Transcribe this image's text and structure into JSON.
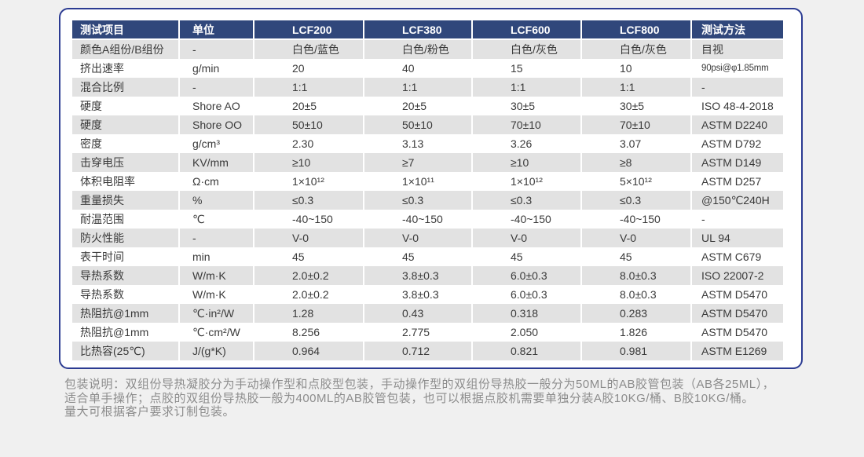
{
  "page": {
    "background_color": "#f0f0f0"
  },
  "card": {
    "border_color": "#2b3b92",
    "background_color": "#ffffff"
  },
  "table": {
    "header_bg_color": "#30477b",
    "header_text_color": "#ffffff",
    "stripe_color": "#e2e2e2",
    "body_text_color": "#3a3a3a",
    "headers": [
      "测试项目",
      "单位",
      "LCF200",
      "LCF380",
      "LCF600",
      "LCF800",
      "测试方法"
    ],
    "rows": [
      [
        "颜色A组份/B组份",
        "-",
        "白色/蓝色",
        "白色/粉色",
        "白色/灰色",
        "白色/灰色",
        "目视"
      ],
      [
        "挤出速率",
        "g/min",
        "20",
        "40",
        "15",
        "10",
        "90psi@φ1.85mm"
      ],
      [
        "混合比例",
        "-",
        "1:1",
        "1:1",
        "1:1",
        "1:1",
        "-"
      ],
      [
        "硬度",
        "Shore AO",
        "20±5",
        "20±5",
        "30±5",
        "30±5",
        "ISO 48-4-2018"
      ],
      [
        "硬度",
        "Shore OO",
        "50±10",
        "50±10",
        "70±10",
        "70±10",
        "ASTM D2240"
      ],
      [
        "密度",
        "g/cm³",
        "2.30",
        "3.13",
        "3.26",
        "3.07",
        "ASTM D792"
      ],
      [
        "击穿电压",
        "KV/mm",
        "≥10",
        "≥7",
        "≥10",
        "≥8",
        "ASTM D149"
      ],
      [
        "体积电阻率",
        "Ω·cm",
        "1×10¹²",
        "1×10¹¹",
        "1×10¹²",
        "5×10¹²",
        "ASTM D257"
      ],
      [
        "重量损失",
        "%",
        "≤0.3",
        "≤0.3",
        "≤0.3",
        "≤0.3",
        "@150℃240H"
      ],
      [
        "耐温范围",
        "℃",
        "-40~150",
        "-40~150",
        "-40~150",
        "-40~150",
        "-"
      ],
      [
        "防火性能",
        "-",
        "V-0",
        "V-0",
        "V-0",
        "V-0",
        "UL 94"
      ],
      [
        "表干时间",
        "min",
        "45",
        "45",
        "45",
        "45",
        "ASTM C679"
      ],
      [
        "导热系数",
        "W/m·K",
        "2.0±0.2",
        "3.8±0.3",
        "6.0±0.3",
        "8.0±0.3",
        "ISO 22007-2"
      ],
      [
        "导热系数",
        "W/m·K",
        "2.0±0.2",
        "3.8±0.3",
        "6.0±0.3",
        "8.0±0.3",
        "ASTM D5470"
      ],
      [
        "热阻抗@1mm",
        "℃·in²/W",
        "1.28",
        "0.43",
        "0.318",
        "0.283",
        "ASTM D5470"
      ],
      [
        "热阻抗@1mm",
        "℃·cm²/W",
        "8.256",
        "2.775",
        "2.050",
        "1.826",
        "ASTM D5470"
      ],
      [
        "比热容(25℃)",
        "J/(g*K)",
        "0.964",
        "0.712",
        "0.821",
        "0.981",
        "ASTM E1269"
      ]
    ]
  },
  "footer": {
    "text_color": "#8c8c8c",
    "lines": [
      "包装说明：双组份导热凝胶分为手动操作型和点胶型包装，手动操作型的双组份导热胶一般分为50ML的AB胶管包装（AB各25ML），",
      "适合单手操作；点胶的双组份导热胶一般为400ML的AB胶管包装，也可以根据点胶机需要单独分装A胶10KG/桶、B胶10KG/桶。",
      "量大可根据客户要求订制包装。"
    ]
  }
}
